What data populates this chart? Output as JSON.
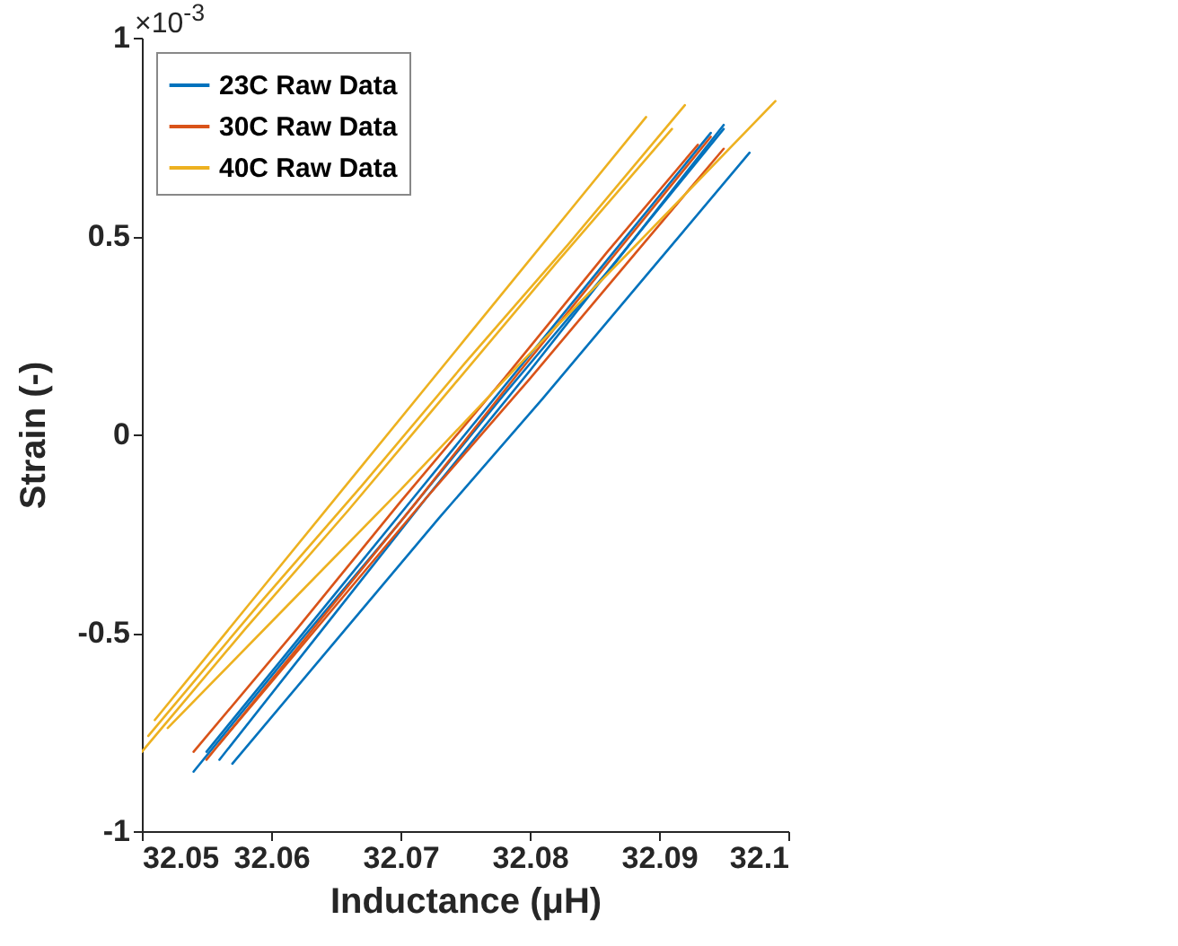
{
  "chart_data": {
    "type": "line",
    "xlabel": "Inductance (μH)",
    "ylabel": "Strain (-)",
    "annotations": [
      "×10$^{-3}$"
    ],
    "xlim": [
      32.05,
      32.1
    ],
    "xticks": [
      32.05,
      32.06,
      32.07,
      32.08,
      32.09,
      32.1
    ],
    "ylim": [
      -1,
      1
    ],
    "yticks": [
      -1,
      -0.5,
      0,
      0.5,
      1
    ],
    "legend": "top left",
    "grid": false,
    "marker": "none",
    "line_style": "solid",
    "series": [
      {
        "name": "23C Raw Data",
        "color": "#0072bd",
        "x": [
          32.054,
          32.062,
          32.07,
          32.078,
          32.086,
          32.095
        ],
        "values": [
          -0.85,
          -0.53,
          -0.22,
          0.1,
          0.41,
          0.77
        ]
      },
      {
        "color": "#0072bd",
        "x": [
          32.057,
          32.065,
          32.073,
          32.081,
          32.089,
          32.097
        ],
        "values": [
          -0.83,
          -0.52,
          -0.21,
          0.09,
          0.4,
          0.71
        ]
      },
      {
        "color": "#0072bd",
        "x": [
          32.055,
          32.063,
          32.071,
          32.079,
          32.087,
          32.094
        ],
        "values": [
          -0.8,
          -0.48,
          -0.16,
          0.16,
          0.48,
          0.76
        ]
      },
      {
        "color": "#0072bd",
        "x": [
          32.056,
          32.064,
          32.072,
          32.08,
          32.088,
          32.095
        ],
        "values": [
          -0.82,
          -0.49,
          -0.16,
          0.16,
          0.49,
          0.78
        ]
      },
      {
        "name": "30C Raw Data",
        "color": "#d95319",
        "x": [
          32.055,
          32.063,
          32.071,
          32.079,
          32.087,
          32.094
        ],
        "values": [
          -0.82,
          -0.5,
          -0.18,
          0.15,
          0.47,
          0.75
        ]
      },
      {
        "color": "#d95319",
        "x": [
          32.056,
          32.064,
          32.072,
          32.08,
          32.088,
          32.095
        ],
        "values": [
          -0.78,
          -0.47,
          -0.16,
          0.14,
          0.45,
          0.72
        ]
      },
      {
        "color": "#d95319",
        "x": [
          32.054,
          32.062,
          32.07,
          32.078,
          32.086,
          32.093
        ],
        "values": [
          -0.8,
          -0.49,
          -0.17,
          0.14,
          0.46,
          0.73
        ]
      },
      {
        "name": "40C Raw Data",
        "color": "#edb120",
        "x": [
          32.05,
          32.058,
          32.066,
          32.074,
          32.082,
          32.091
        ],
        "values": [
          -0.8,
          -0.49,
          -0.19,
          0.12,
          0.43,
          0.77
        ]
      },
      {
        "color": "#edb120",
        "x": [
          32.0505,
          32.059,
          32.067,
          32.075,
          32.083,
          32.092
        ],
        "values": [
          -0.76,
          -0.43,
          -0.13,
          0.18,
          0.48,
          0.83
        ]
      },
      {
        "color": "#edb120",
        "x": [
          32.052,
          32.061,
          32.07,
          32.079,
          32.088,
          32.099
        ],
        "values": [
          -0.74,
          -0.44,
          -0.14,
          0.17,
          0.47,
          0.84
        ]
      },
      {
        "color": "#edb120",
        "x": [
          32.051,
          32.059,
          32.067,
          32.075,
          32.083,
          32.089
        ],
        "values": [
          -0.72,
          -0.4,
          -0.08,
          0.24,
          0.56,
          0.8
        ]
      }
    ]
  }
}
